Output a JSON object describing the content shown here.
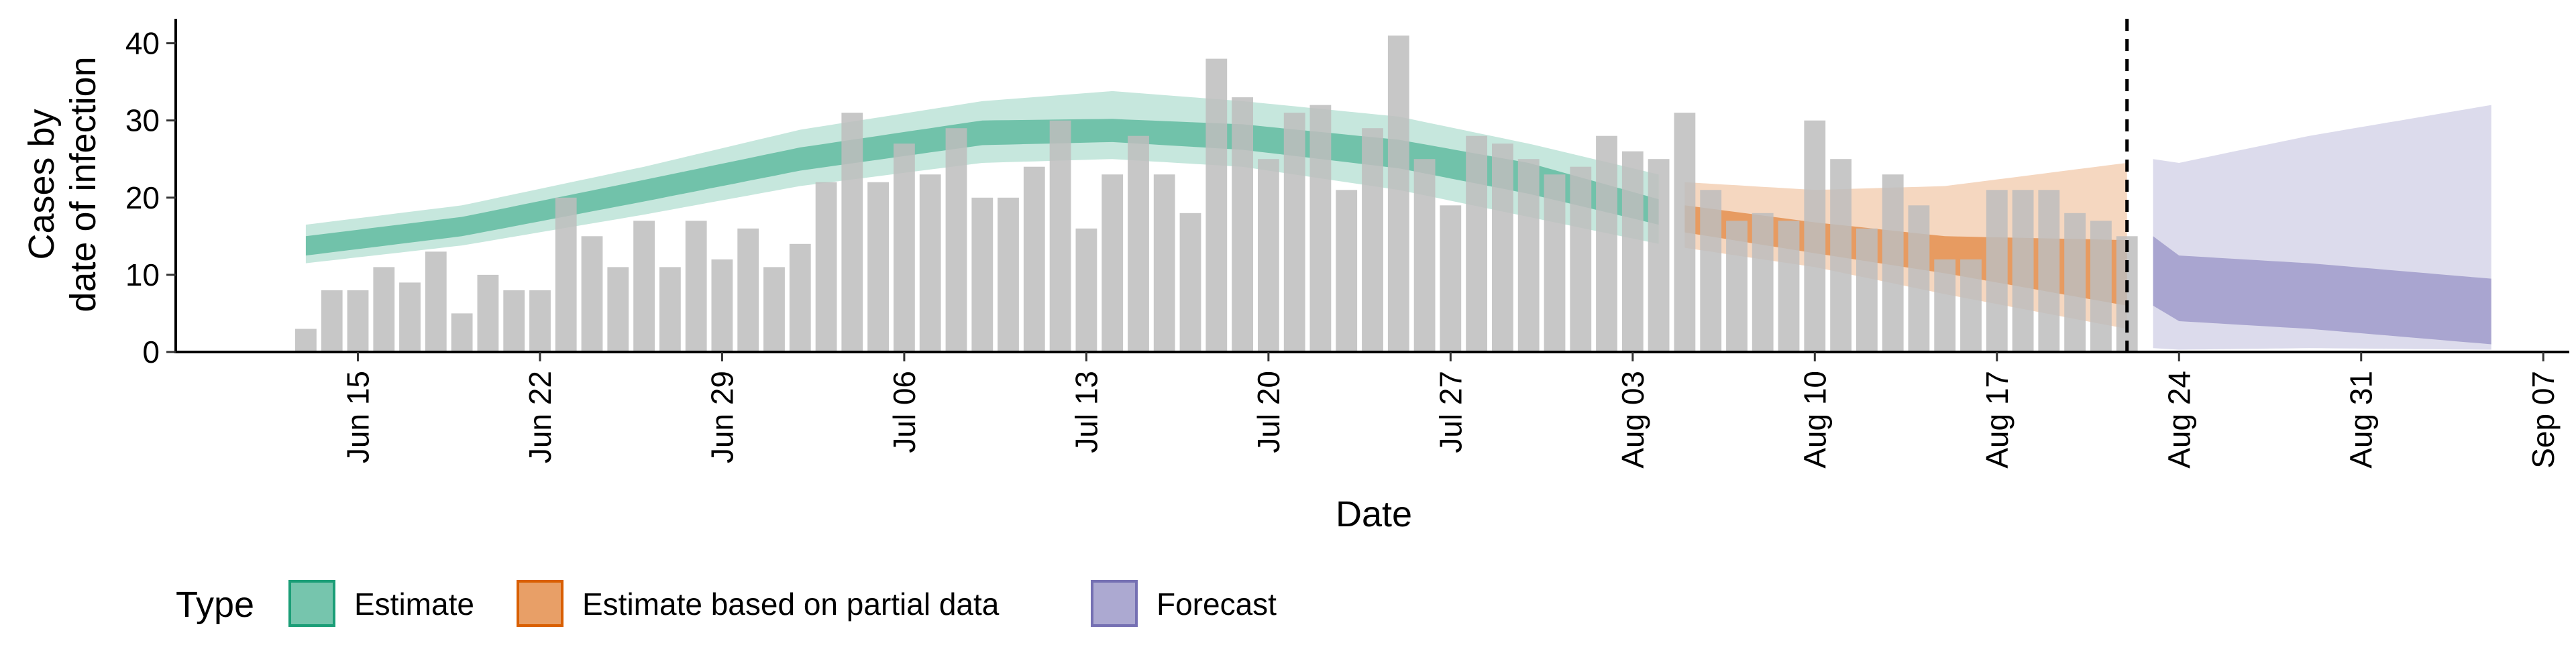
{
  "chart_data": {
    "type": "bar",
    "xlabel": "Date",
    "ylabel_lines": [
      "Cases by",
      "date of infection"
    ],
    "ylim": [
      0,
      43
    ],
    "yticks": [
      0,
      10,
      20,
      30,
      40
    ],
    "xlim": [
      "2021-06-08",
      "2021-09-08"
    ],
    "xticks": [
      {
        "date": "2021-06-15",
        "label": "Jun 15"
      },
      {
        "date": "2021-06-22",
        "label": "Jun 22"
      },
      {
        "date": "2021-06-29",
        "label": "Jun 29"
      },
      {
        "date": "2021-07-06",
        "label": "Jul 06"
      },
      {
        "date": "2021-07-13",
        "label": "Jul 13"
      },
      {
        "date": "2021-07-20",
        "label": "Jul 20"
      },
      {
        "date": "2021-07-27",
        "label": "Jul 27"
      },
      {
        "date": "2021-08-03",
        "label": "Aug 03"
      },
      {
        "date": "2021-08-10",
        "label": "Aug 10"
      },
      {
        "date": "2021-08-17",
        "label": "Aug 17"
      },
      {
        "date": "2021-08-24",
        "label": "Aug 24"
      },
      {
        "date": "2021-08-31",
        "label": "Aug 31"
      },
      {
        "date": "2021-09-07",
        "label": "Sep 07"
      }
    ],
    "grid": false,
    "legend_position": "bottom",
    "legend_title": "Type",
    "colors": {
      "bars": "#bdbdbd",
      "Estimate": "#1b9e77",
      "Estimate based on partial data": "#d95f02",
      "Forecast": "#7570b3"
    },
    "reported_cases": {
      "start": "2021-06-13",
      "values": [
        3,
        8,
        8,
        11,
        9,
        13,
        5,
        10,
        8,
        8,
        20,
        15,
        11,
        17,
        11,
        17,
        12,
        16,
        11,
        14,
        22,
        31,
        22,
        27,
        23,
        29,
        20,
        20,
        24,
        30,
        16,
        23,
        28,
        23,
        18,
        38,
        33,
        25,
        31,
        32,
        21,
        29,
        41,
        25,
        19,
        28,
        27,
        25,
        23,
        24,
        28,
        26,
        25,
        31,
        21,
        17,
        18,
        17,
        30,
        25,
        16,
        23,
        19,
        12,
        12,
        21,
        21,
        21,
        18,
        17,
        15
      ]
    },
    "intervention_date": "2021-08-22",
    "series": [
      {
        "name": "Estimate",
        "start": "2021-06-13",
        "end": "2021-08-04",
        "median": [
          [
            0,
            13.6
          ],
          [
            6,
            16.2
          ],
          [
            13,
            20.6
          ],
          [
            19,
            25.0
          ],
          [
            26,
            28.5
          ],
          [
            31,
            29.0
          ],
          [
            36,
            28.0
          ],
          [
            42,
            25.5
          ],
          [
            47,
            22.8
          ],
          [
            52,
            18.2
          ]
        ],
        "inner": [
          [
            0,
            12.5,
            15.0
          ],
          [
            6,
            15.0,
            17.5
          ],
          [
            13,
            19.5,
            22.3
          ],
          [
            19,
            23.5,
            26.5
          ],
          [
            26,
            26.8,
            30.0
          ],
          [
            31,
            27.2,
            30.2
          ],
          [
            36,
            26.2,
            29.5
          ],
          [
            42,
            23.8,
            27.5
          ],
          [
            47,
            20.5,
            24.5
          ],
          [
            52,
            16.5,
            19.8
          ]
        ],
        "outer": [
          [
            0,
            11.5,
            16.5
          ],
          [
            6,
            13.8,
            19.0
          ],
          [
            13,
            17.8,
            24.0
          ],
          [
            19,
            21.5,
            28.8
          ],
          [
            26,
            24.5,
            32.5
          ],
          [
            31,
            25.0,
            33.8
          ],
          [
            36,
            24.0,
            32.5
          ],
          [
            42,
            21.0,
            30.5
          ],
          [
            47,
            17.5,
            27.0
          ],
          [
            52,
            14.0,
            23.0
          ]
        ]
      },
      {
        "name": "Estimate based on partial data",
        "start": "2021-08-05",
        "end": "2021-08-22",
        "median": [
          [
            0,
            17.0
          ],
          [
            5,
            14.8
          ],
          [
            10,
            12.8
          ],
          [
            17,
            10.8
          ]
        ],
        "inner": [
          [
            0,
            15.5,
            19.0
          ],
          [
            5,
            12.8,
            16.8
          ],
          [
            10,
            10.2,
            15.0
          ],
          [
            17,
            6.0,
            14.5
          ]
        ],
        "outer": [
          [
            0,
            13.5,
            22.0
          ],
          [
            5,
            11.0,
            21.0
          ],
          [
            10,
            7.5,
            21.5
          ],
          [
            17,
            3.0,
            24.5
          ]
        ]
      },
      {
        "name": "Forecast",
        "start": "2021-08-23",
        "end": "2021-09-05",
        "inner": [
          [
            0,
            6.0,
            15.0
          ],
          [
            1,
            4.0,
            12.5
          ],
          [
            6,
            3.0,
            11.5
          ],
          [
            13,
            1.0,
            9.5
          ]
        ],
        "outer": [
          [
            0,
            0.5,
            25.0
          ],
          [
            1,
            0.3,
            24.5
          ],
          [
            6,
            0.5,
            28.0
          ],
          [
            13,
            0.3,
            32.0
          ]
        ]
      }
    ]
  }
}
